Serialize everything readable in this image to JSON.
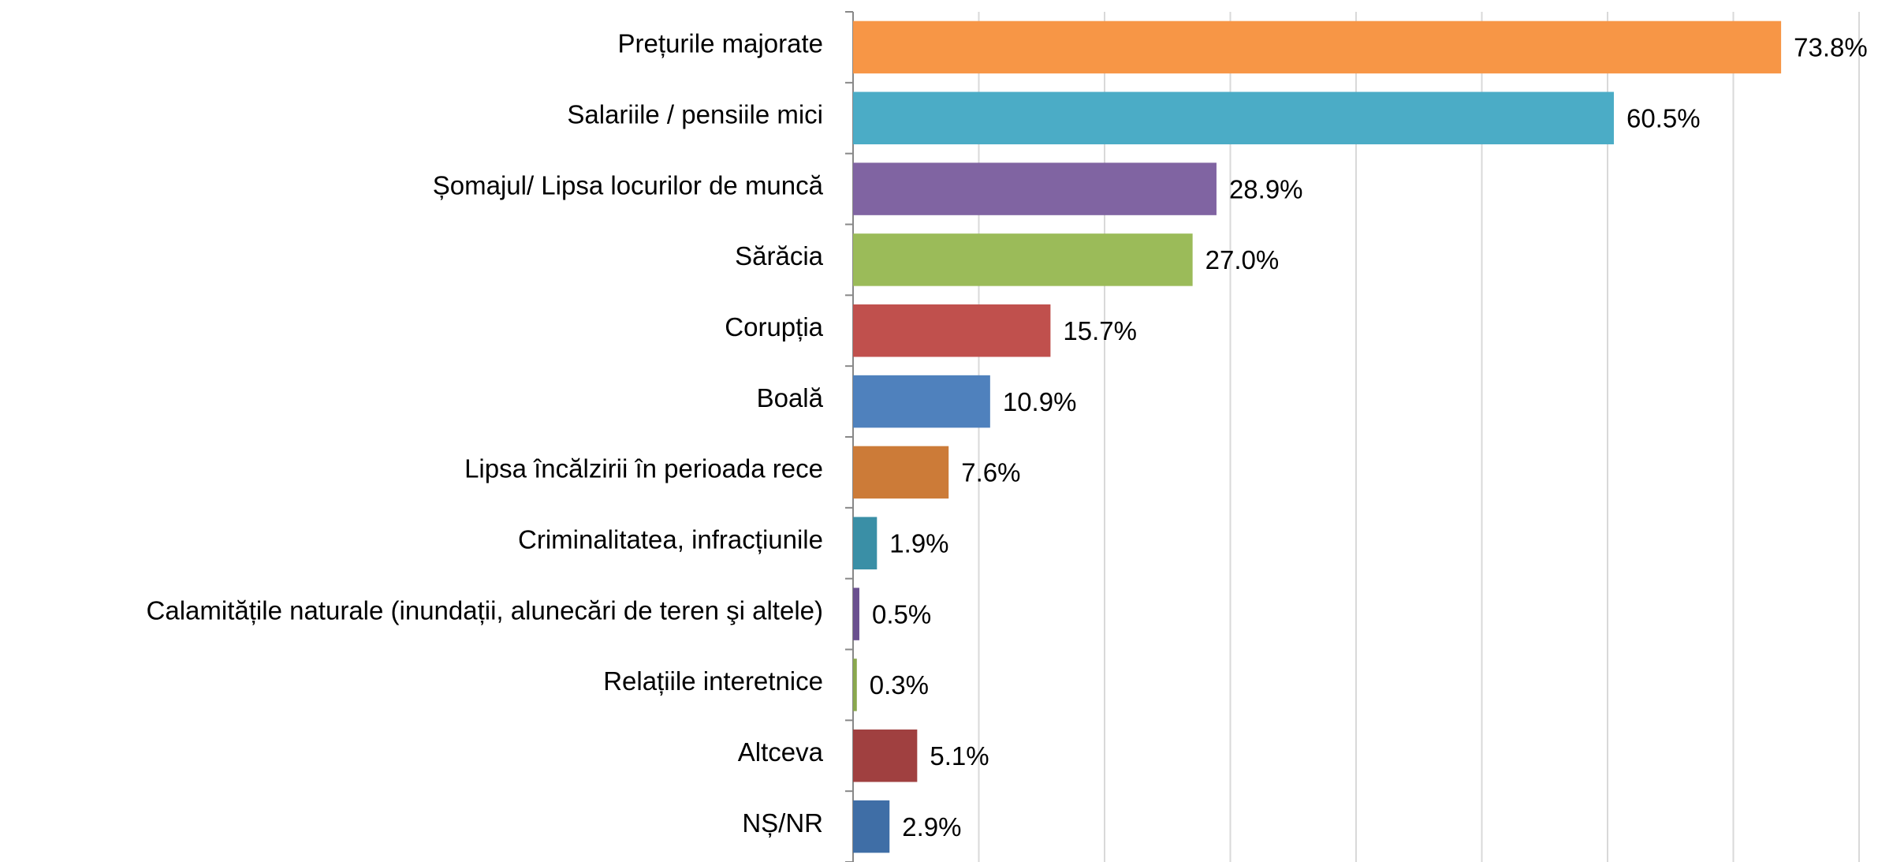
{
  "chart_data": {
    "type": "barh",
    "categories": [
      "Prețurile majorate",
      "Salariile / pensiile mici",
      "Șomajul/ Lipsa locurilor de muncă",
      "Sărăcia",
      "Corupția",
      "Boală",
      "Lipsa încălzirii în perioada rece",
      "Criminalitatea, infracțiunile",
      "Calamitățile naturale (inundații, alunecări de teren şi altele)",
      "Relațiile interetnice",
      "Altceva",
      "NȘ/NR"
    ],
    "values": [
      73.8,
      60.5,
      28.9,
      27.0,
      15.7,
      10.9,
      7.6,
      1.9,
      0.5,
      0.3,
      5.1,
      2.9
    ],
    "value_labels": [
      "73.8%",
      "60.5%",
      "28.9%",
      "27.0%",
      "15.7%",
      "10.9%",
      "7.6%",
      "1.9%",
      "0.5%",
      "0.3%",
      "5.1%",
      "2.9%"
    ],
    "colors": [
      "#f79646",
      "#4bacc6",
      "#8064a2",
      "#9bbb59",
      "#c0504d",
      "#4f81bd",
      "#cc7b38",
      "#3a8fa6",
      "#6a508f",
      "#8aa84e",
      "#a04040",
      "#3f6ea6"
    ],
    "xlim": [
      0,
      80
    ],
    "xticks": [
      0,
      10,
      20,
      30,
      40,
      50,
      60,
      70,
      80
    ],
    "grid": true
  }
}
